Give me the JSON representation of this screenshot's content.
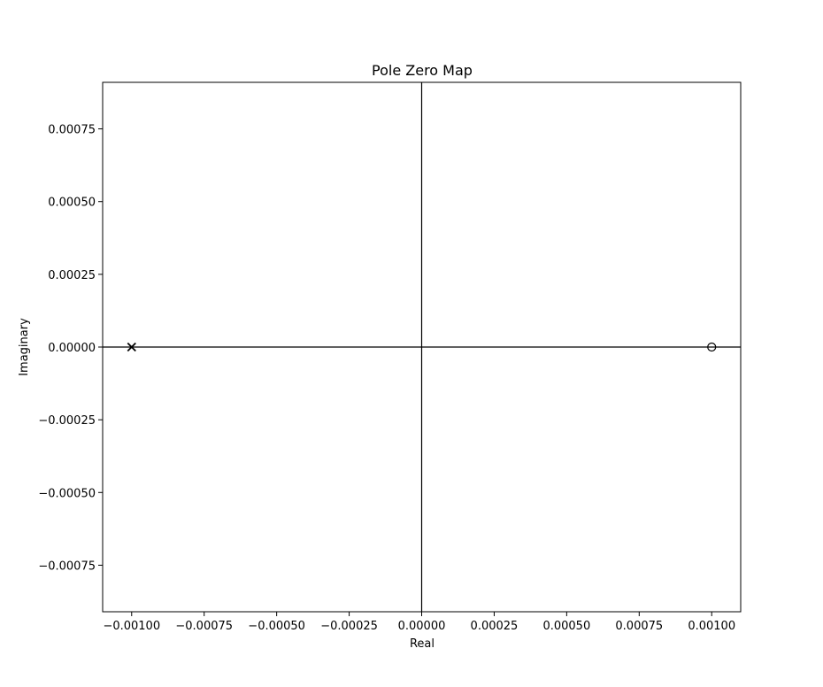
{
  "chart_data": {
    "type": "scatter",
    "title": "Pole Zero Map",
    "xlabel": "Real",
    "ylabel": "Imaginary",
    "xlim": [
      -0.0011,
      0.0011
    ],
    "ylim": [
      -0.00091,
      0.00091
    ],
    "grid": false,
    "x_ticks": [
      -0.001,
      -0.00075,
      -0.0005,
      -0.00025,
      0,
      0.00025,
      0.0005,
      0.00075,
      0.001
    ],
    "x_tick_labels": [
      "−0.00100",
      "−0.00075",
      "−0.00050",
      "−0.00025",
      "0.00000",
      "0.00025",
      "0.00050",
      "0.00075",
      "0.00100"
    ],
    "y_ticks": [
      0.00075,
      0.0005,
      0.00025,
      0,
      -0.00025,
      -0.0005,
      -0.00075
    ],
    "y_tick_labels": [
      "0.00075",
      "0.00050",
      "0.00025",
      "0.00000",
      "−0.00025",
      "−0.00050",
      "−0.00075"
    ],
    "reference_lines": {
      "x": 0,
      "y": 0
    },
    "poles": [
      {
        "x": -0.001,
        "y": 0
      }
    ],
    "zeros": [
      {
        "x": 0.001,
        "y": 0
      }
    ]
  }
}
